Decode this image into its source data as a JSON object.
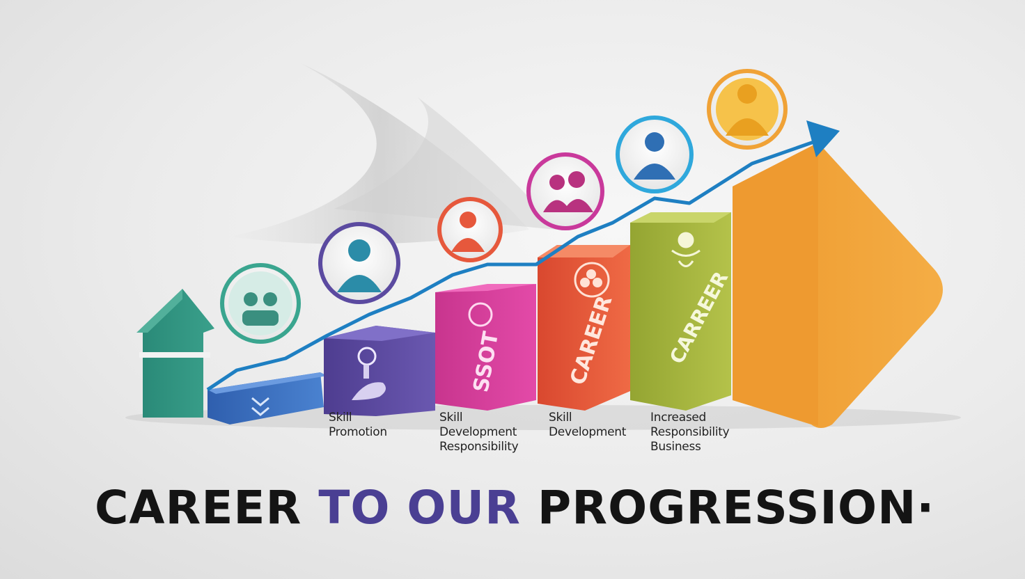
{
  "colors": {
    "teal": "#2e8f7c",
    "blue": "#3a6fc0",
    "purple": "#5b4aa0",
    "magenta": "#d83f9c",
    "red_orange": "#e6583c",
    "olive": "#a3b33c",
    "orange": "#f0a236",
    "trend_line": "#1e7fc2",
    "headline_dark": "#141414",
    "headline_purple": "#4a3f93"
  },
  "icons": [
    {
      "name": "team-icon",
      "ring": "#3aa58f"
    },
    {
      "name": "person-icon",
      "ring": "#5b4aa0"
    },
    {
      "name": "person-icon",
      "ring": "#e6583c"
    },
    {
      "name": "group-icon",
      "ring": "#c9399b"
    },
    {
      "name": "manager-icon",
      "ring": "#2fa8dc"
    },
    {
      "name": "leader-icon",
      "ring": "#f0a236"
    }
  ],
  "block_text": {
    "magenta": "SSOT",
    "red": "CAREER",
    "olive": "CARREER"
  },
  "labels": [
    {
      "lines": [
        "Skill",
        "Promotion"
      ]
    },
    {
      "lines": [
        "Skill",
        "Development",
        "Responsibility"
      ]
    },
    {
      "lines": [
        "Skill",
        "Development"
      ]
    },
    {
      "lines": [
        "Increased",
        "Responsibility",
        "Business"
      ]
    }
  ],
  "headline": {
    "word1": "CAREER",
    "word2": "TO OUR",
    "word3": "PROGRESSION·"
  }
}
